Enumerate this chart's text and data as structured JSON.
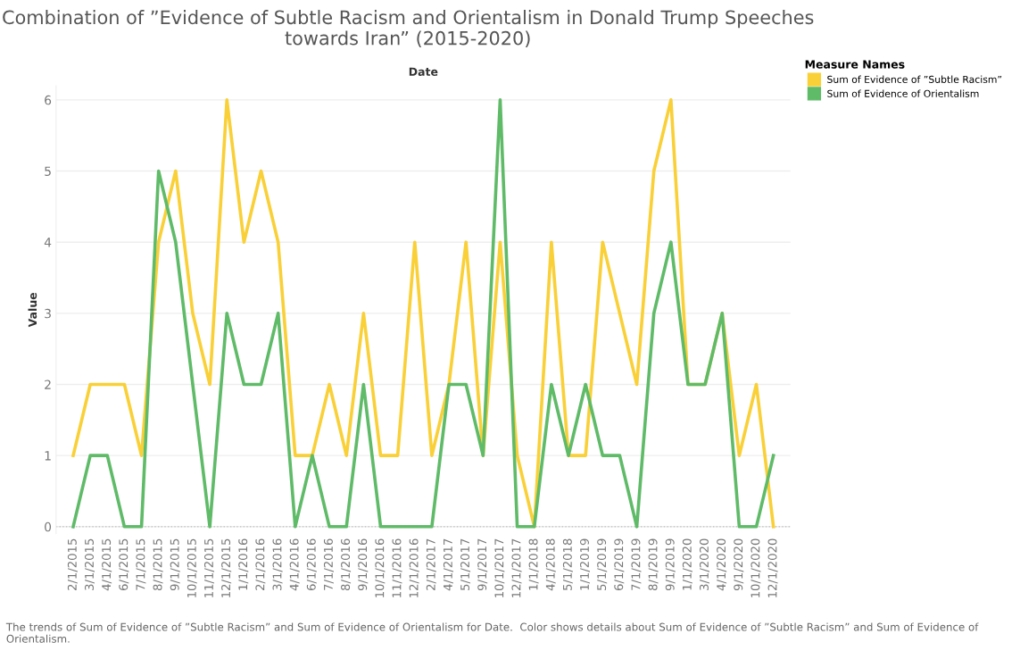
{
  "chart_data": {
    "type": "line",
    "title": "Combination of ”Evidence of Subtle Racism and Orientalism in Donald Trump Speeches towards Iran” (2015-2020)",
    "xlabel": "Date",
    "ylabel": "Value",
    "legend_title": "Measure Names",
    "categories": [
      "2/1/2015",
      "3/1/2015",
      "4/1/2015",
      "6/1/2015",
      "7/1/2015",
      "8/1/2015",
      "9/1/2015",
      "10/1/2015",
      "11/1/2015",
      "12/1/2015",
      "1/1/2016",
      "2/1/2016",
      "3/1/2016",
      "4/1/2016",
      "6/1/2016",
      "7/1/2016",
      "8/1/2016",
      "9/1/2016",
      "10/1/2016",
      "11/1/2016",
      "12/1/2016",
      "2/1/2017",
      "4/1/2017",
      "5/1/2017",
      "9/1/2017",
      "10/1/2017",
      "12/1/2017",
      "1/1/2018",
      "4/1/2018",
      "5/1/2018",
      "1/1/2019",
      "5/1/2019",
      "6/1/2019",
      "7/1/2019",
      "8/1/2019",
      "9/1/2019",
      "1/1/2020",
      "3/1/2020",
      "4/1/2020",
      "9/1/2020",
      "10/1/2020",
      "12/1/2020"
    ],
    "series": [
      {
        "name": "Sum of Evidence of ”Subtle Racism”",
        "color": "#f9d037",
        "values": [
          1,
          2,
          2,
          2,
          1,
          4,
          5,
          3,
          2,
          6,
          4,
          5,
          4,
          1,
          1,
          2,
          1,
          3,
          1,
          1,
          4,
          1,
          2,
          4,
          1,
          4,
          1,
          0,
          4,
          1,
          1,
          4,
          3,
          2,
          5,
          6,
          2,
          2,
          3,
          1,
          2,
          0
        ]
      },
      {
        "name": "Sum of Evidence of Orientalism",
        "color": "#5fbb68",
        "values": [
          0,
          1,
          1,
          0,
          0,
          5,
          4,
          2,
          0,
          3,
          2,
          2,
          3,
          0,
          1,
          0,
          0,
          2,
          0,
          0,
          0,
          0,
          2,
          2,
          1,
          6,
          0,
          0,
          2,
          1,
          2,
          1,
          1,
          0,
          3,
          4,
          2,
          2,
          3,
          0,
          0,
          1
        ]
      }
    ],
    "ylim": [
      -0.1,
      6.2
    ],
    "yticks": [
      0,
      1,
      2,
      3,
      4,
      5,
      6
    ],
    "grid": "y",
    "legend": "top right",
    "marker": "none",
    "line_style": "solid",
    "ref_lines": [
      {
        "axis": "y",
        "value": 0,
        "color": "#c8c8c8",
        "line_style": "dotted"
      }
    ],
    "annotations": [
      "The trends of Sum of Evidence of ”Subtle Racism” and Sum of Evidence of Orientalism for Date.  Color shows details about Sum of Evidence of ”Subtle Racism” and Sum of Evidence of Orientalism."
    ]
  }
}
